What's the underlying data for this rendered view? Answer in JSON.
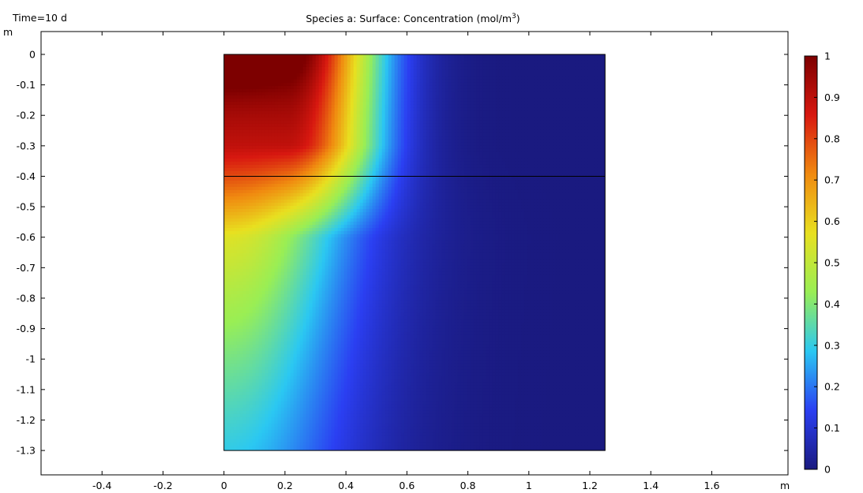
{
  "chart_data": {
    "type": "heatmap",
    "title": "Species a:  Surface: Concentration (mol/m",
    "title_superscript": "3",
    "title_suffix": ")",
    "time_label": "Time=10 d",
    "xlabel": "m",
    "ylabel": "m",
    "xlim": [
      -0.6,
      1.85
    ],
    "ylim": [
      -1.38,
      0.075
    ],
    "x_ticks": [
      -0.4,
      -0.2,
      0,
      0.2,
      0.4,
      0.6,
      0.8,
      1,
      1.2,
      1.4,
      1.6
    ],
    "x_tick_labels": [
      "-0.4",
      "-0.2",
      "0",
      "0.2",
      "0.4",
      "0.6",
      "0.8",
      "1",
      "1.2",
      "1.4",
      "1.6"
    ],
    "y_ticks": [
      0,
      -0.1,
      -0.2,
      -0.3,
      -0.4,
      -0.5,
      -0.6,
      -0.7,
      -0.8,
      -0.9,
      -1,
      -1.1,
      -1.2,
      -1.3
    ],
    "y_tick_labels": [
      "0",
      "-0.1",
      "-0.2",
      "-0.3",
      "-0.4",
      "-0.5",
      "-0.6",
      "-0.7",
      "-0.8",
      "-0.9",
      "-1",
      "-1.1",
      "-1.2",
      "-1.3"
    ],
    "domain": {
      "x": [
        0,
        1.25
      ],
      "y": [
        -1.3,
        0
      ]
    },
    "interface_y": -0.4,
    "colormap": "rainbow",
    "colormap_stops": [
      "#1a1a80",
      "#2b3ff2",
      "#2bc8f2",
      "#99ee55",
      "#e8e020",
      "#f08a10",
      "#d81810",
      "#7d0000"
    ],
    "colorbar": {
      "min": 0,
      "max": 1,
      "ticks": [
        0,
        0.1,
        0.2,
        0.3,
        0.4,
        0.5,
        0.6,
        0.7,
        0.8,
        0.9,
        1
      ],
      "tick_labels": [
        "0",
        "0.1",
        "0.2",
        "0.3",
        "0.4",
        "0.5",
        "0.6",
        "0.7",
        "0.8",
        "0.9",
        "1"
      ]
    },
    "field_description": "Concentration max (1) at top-left corner (0,0), diffusing rightward and downward; near 0 beyond x≈0.7 m"
  }
}
